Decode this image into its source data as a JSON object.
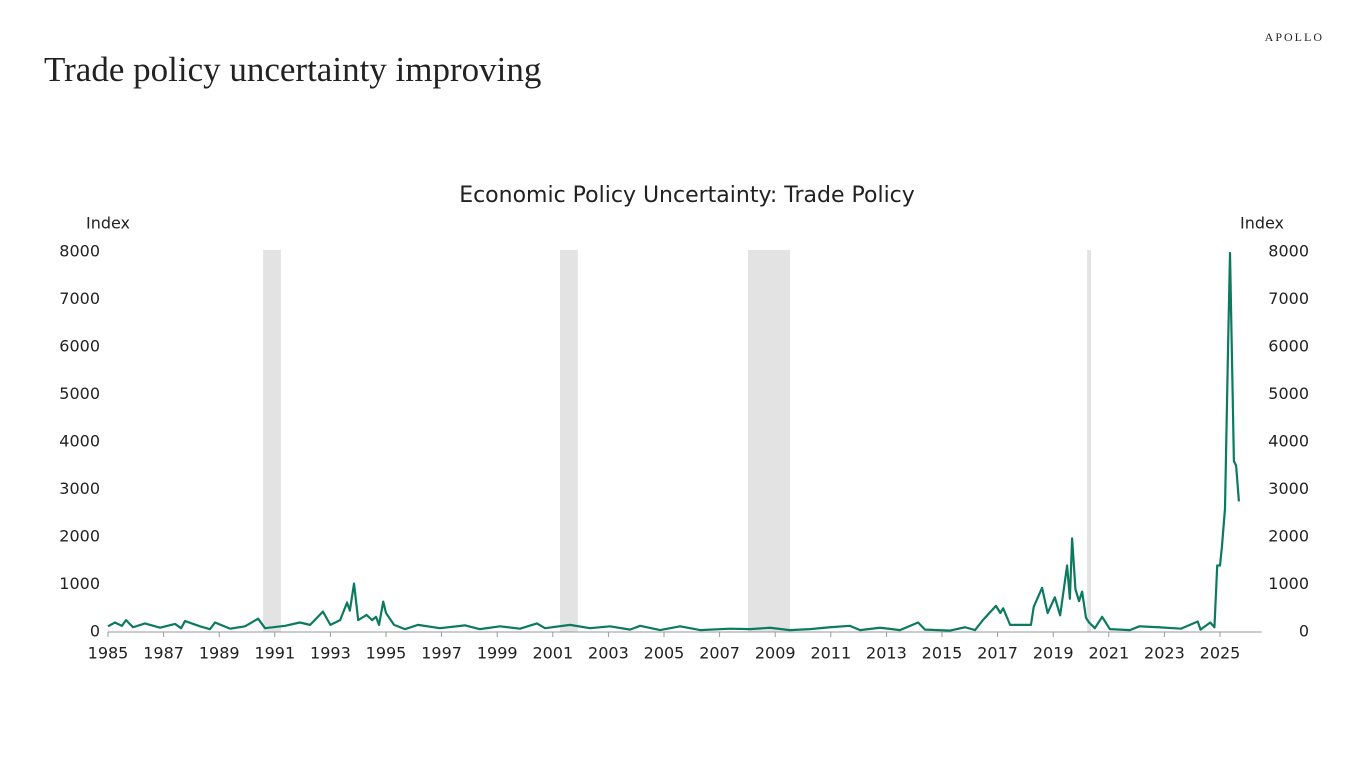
{
  "header": {
    "title": "Trade policy uncertainty improving",
    "logo": "APOLLO"
  },
  "chart_data": {
    "type": "line",
    "title": "Economic Policy Uncertainty: Trade Policy",
    "y_label": "Index",
    "y2_label": "Index",
    "color": "#0b7a5f",
    "recession_color": "#e3e3e3",
    "recessions": [
      [
        1990.58,
        1991.22
      ],
      [
        2001.26,
        2001.9
      ],
      [
        2008.02,
        2009.53
      ],
      [
        2020.22,
        2020.36
      ]
    ],
    "x": [
      1985.0,
      1985.25,
      1985.5,
      1985.65,
      1985.9,
      1986.33,
      1986.87,
      1987.41,
      1987.63,
      1987.77,
      1988.31,
      1988.67,
      1988.85,
      1989.39,
      1989.93,
      1990.4,
      1990.65,
      1991.37,
      1991.9,
      1992.27,
      1992.73,
      1993.0,
      1993.35,
      1993.6,
      1993.7,
      1993.85,
      1994.0,
      1994.3,
      1994.5,
      1994.64,
      1994.75,
      1994.9,
      1995.0,
      1995.29,
      1995.68,
      1996.15,
      1996.94,
      1997.84,
      1998.38,
      1999.1,
      1999.82,
      2000.43,
      2000.72,
      2001.62,
      2002.34,
      2003.06,
      2003.78,
      2004.14,
      2004.86,
      2005.58,
      2006.3,
      2007.37,
      2008.09,
      2008.81,
      2009.53,
      2010.25,
      2010.97,
      2011.69,
      2012.05,
      2012.77,
      2013.49,
      2014.14,
      2014.39,
      2015.29,
      2015.83,
      2016.19,
      2016.47,
      2016.94,
      2017.1,
      2017.2,
      2017.45,
      2018.2,
      2018.3,
      2018.6,
      2018.8,
      2019.06,
      2019.25,
      2019.5,
      2019.6,
      2019.68,
      2019.8,
      2019.93,
      2020.04,
      2020.18,
      2020.29,
      2020.5,
      2020.76,
      2021.04,
      2021.76,
      2022.1,
      2022.8,
      2023.6,
      2024.2,
      2024.3,
      2024.65,
      2024.8,
      2024.9,
      2025.0,
      2025.07,
      2025.18,
      2025.29,
      2025.36,
      2025.5,
      2025.58,
      2025.68
    ],
    "values": [
      120,
      200,
      130,
      250,
      100,
      180,
      90,
      170,
      80,
      230,
      120,
      60,
      200,
      70,
      120,
      280,
      80,
      130,
      200,
      150,
      430,
      150,
      250,
      620,
      450,
      1020,
      250,
      360,
      250,
      320,
      150,
      640,
      400,
      150,
      60,
      150,
      80,
      140,
      60,
      120,
      70,
      180,
      80,
      150,
      80,
      120,
      50,
      130,
      40,
      120,
      40,
      70,
      60,
      90,
      40,
      60,
      100,
      130,
      40,
      90,
      40,
      200,
      50,
      30,
      100,
      40,
      250,
      550,
      400,
      500,
      150,
      150,
      530,
      930,
      400,
      730,
      350,
      1400,
      700,
      1972,
      900,
      650,
      850,
      300,
      200,
      80,
      320,
      60,
      40,
      120,
      100,
      70,
      220,
      50,
      200,
      100,
      1400,
      1400,
      1800,
      2600,
      6000,
      7980,
      3600,
      3500,
      2750
    ],
    "xlim": [
      1985,
      2026.5
    ],
    "xticks": [
      1985,
      1987,
      1989,
      1991,
      1993,
      1995,
      1997,
      1999,
      2001,
      2003,
      2005,
      2007,
      2009,
      2011,
      2013,
      2015,
      2017,
      2019,
      2021,
      2023,
      2025
    ],
    "ylim": [
      0,
      8000
    ],
    "yticks": [
      0,
      1000,
      2000,
      3000,
      4000,
      5000,
      6000,
      7000,
      8000
    ],
    "y2lim": [
      0,
      8000
    ],
    "y2ticks": [
      0,
      1000,
      2000,
      3000,
      4000,
      5000,
      6000,
      7000,
      8000
    ],
    "grid": false
  }
}
